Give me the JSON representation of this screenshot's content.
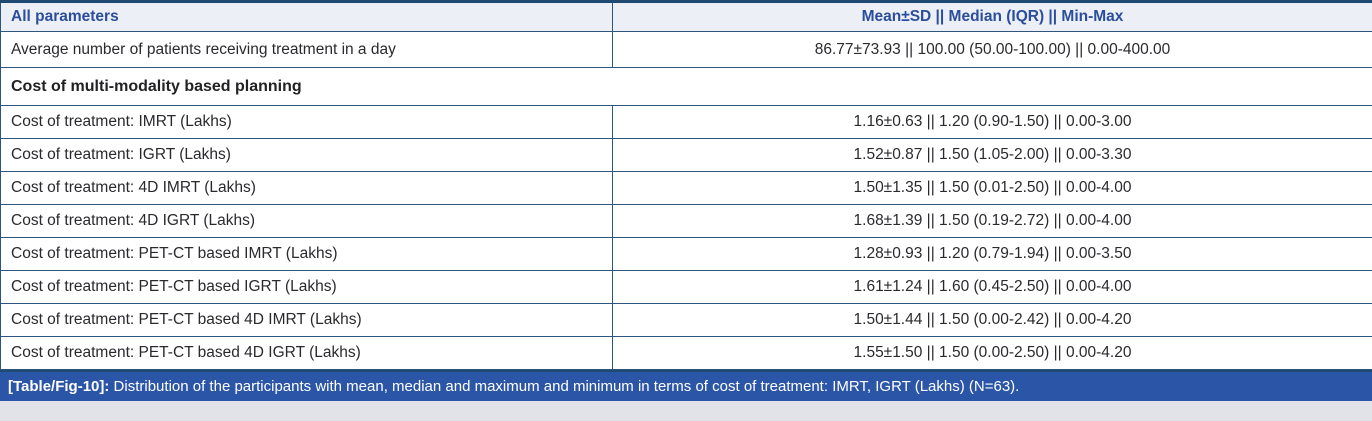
{
  "table": {
    "header": {
      "col1": "All parameters",
      "col2": "Mean±SD || Median (IQR) || Min-Max"
    },
    "rows_top": [
      {
        "param": "Average number of patients receiving treatment in a day",
        "stats": "86.77±73.93 || 100.00 (50.00-100.00) || 0.00-400.00"
      }
    ],
    "section_label": "Cost of multi-modality based planning",
    "rows_cost": [
      {
        "param": "Cost of treatment: IMRT (Lakhs)",
        "stats": "1.16±0.63 || 1.20 (0.90-1.50) || 0.00-3.00"
      },
      {
        "param": "Cost of treatment: IGRT (Lakhs)",
        "stats": "1.52±0.87 || 1.50 (1.05-2.00) || 0.00-3.30"
      },
      {
        "param": "Cost of treatment: 4D IMRT (Lakhs)",
        "stats": "1.50±1.35 || 1.50 (0.01-2.50) || 0.00-4.00"
      },
      {
        "param": "Cost of treatment: 4D IGRT (Lakhs)",
        "stats": "1.68±1.39 || 1.50 (0.19-2.72) || 0.00-4.00"
      },
      {
        "param": "Cost of treatment: PET-CT based IMRT (Lakhs)",
        "stats": "1.28±0.93 || 1.20 (0.79-1.94) || 0.00-3.50"
      },
      {
        "param": "Cost of treatment: PET-CT based IGRT (Lakhs)",
        "stats": "1.61±1.24 || 1.60 (0.45-2.50) || 0.00-4.00"
      },
      {
        "param": "Cost of treatment: PET-CT based 4D IMRT (Lakhs)",
        "stats": "1.50±1.44 || 1.50 (0.00-2.42) || 0.00-4.20"
      },
      {
        "param": "Cost of treatment: PET-CT based 4D IGRT (Lakhs)",
        "stats": "1.55±1.50 || 1.50 (0.00-2.50) || 0.00-4.20"
      }
    ],
    "caption": {
      "tag": "[Table/Fig-10]:",
      "text": " Distribution of the participants with mean, median and maximum and minimum in terms of cost of treatment: IMRT, IGRT (Lakhs) (N=63)."
    }
  },
  "colors": {
    "grid_border": "#2e567c",
    "heavy_rule": "#1d4973",
    "header_bg": "#edeff6",
    "header_text": "#2b4e9c",
    "body_text": "#2a2a2e",
    "caption_bg": "#2b55a7",
    "caption_text": "#ffffff"
  }
}
